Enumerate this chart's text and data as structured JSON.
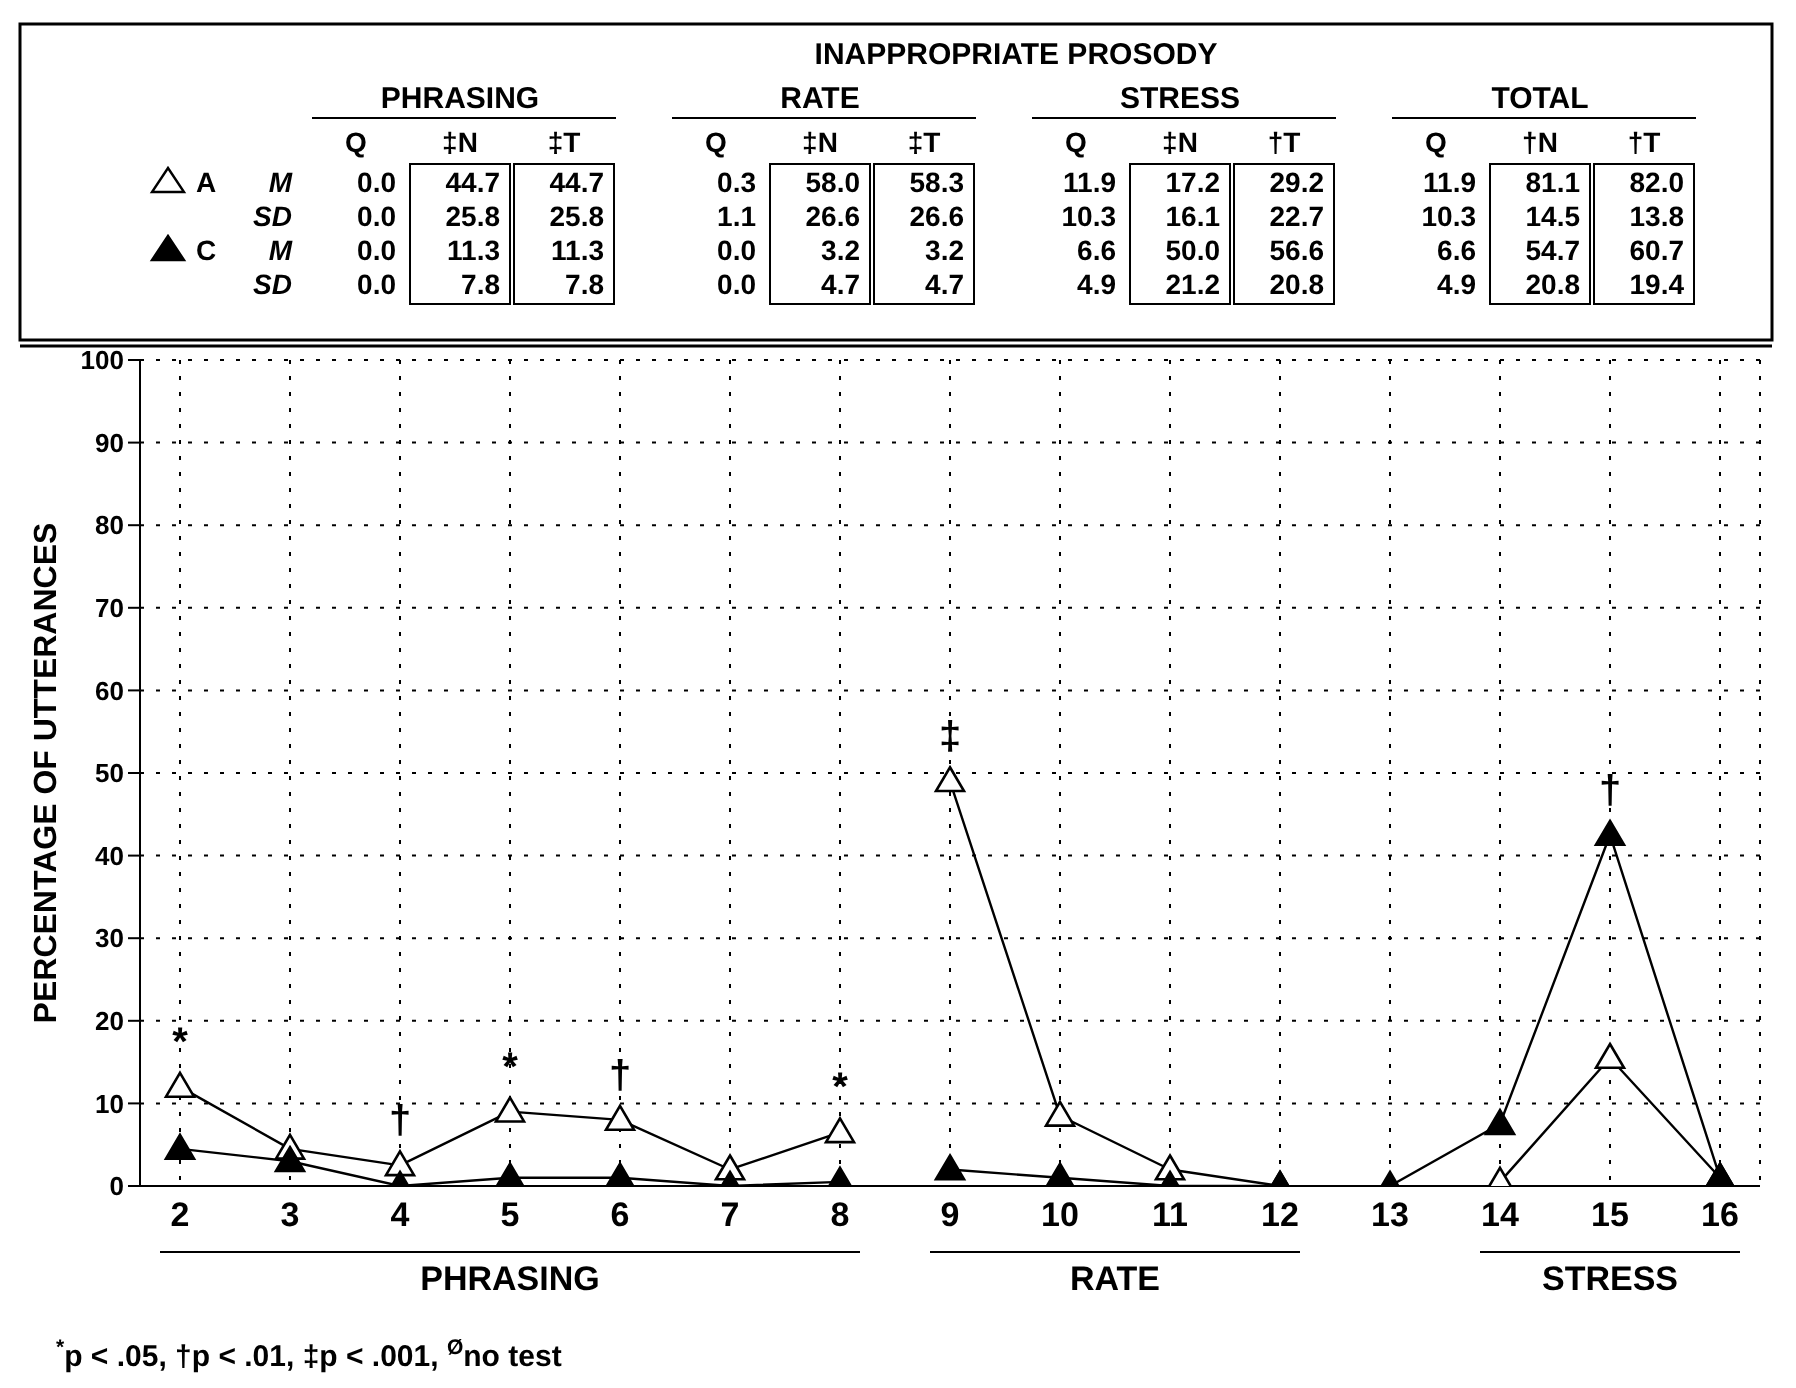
{
  "chart_data": [
    {
      "type": "heatmap",
      "title": "INAPPROPRIATE PROSODY",
      "annotations": [
        "PHRASING",
        "RATE",
        "STRESS",
        "TOTAL"
      ],
      "categories": [
        "Q",
        "‡N",
        "‡T",
        "Q",
        "‡N",
        "‡T",
        "Q",
        "‡N",
        "†T",
        "Q",
        "†N",
        "†T"
      ],
      "y_categories": [
        "M",
        "SD",
        "M",
        "SD"
      ],
      "cells": [
        [
          0.0,
          44.7,
          44.7,
          0.3,
          58.0,
          58.3,
          11.9,
          17.2,
          29.2,
          11.9,
          81.1,
          82.0
        ],
        [
          0.0,
          25.8,
          25.8,
          1.1,
          26.6,
          26.6,
          10.3,
          16.1,
          22.7,
          10.3,
          14.5,
          13.8
        ],
        [
          0.0,
          11.3,
          11.3,
          0.0,
          3.2,
          3.2,
          6.6,
          50.0,
          56.6,
          6.6,
          54.7,
          60.7
        ],
        [
          0.0,
          7.8,
          7.8,
          0.0,
          4.7,
          4.7,
          4.9,
          21.2,
          20.8,
          4.9,
          20.8,
          19.4
        ]
      ],
      "cell_labels": [
        [
          "0.0",
          "44.7",
          "44.7",
          "0.3",
          "58.0",
          "58.3",
          "11.9",
          "17.2",
          "29.2",
          "11.9",
          "81.1",
          "82.0"
        ],
        [
          "0.0",
          "25.8",
          "25.8",
          "1.1",
          "26.6",
          "26.6",
          "10.3",
          "16.1",
          "22.7",
          "10.3",
          "14.5",
          "13.8"
        ],
        [
          "0.0",
          "11.3",
          "11.3",
          "0.0",
          "3.2",
          "3.2",
          "6.6",
          "50.0",
          "56.6",
          "6.6",
          "54.7",
          "60.7"
        ],
        [
          "0.0",
          "7.8",
          "7.8",
          "0.0",
          "4.7",
          "4.7",
          "4.9",
          "21.2",
          "20.8",
          "4.9",
          "20.8",
          "19.4"
        ]
      ]
    },
    {
      "type": "line",
      "ylabel": "PERCENTAGE OF UTTERANCES",
      "categories": [
        "2",
        "3",
        "4",
        "5",
        "6",
        "7",
        "8",
        "9",
        "10",
        "11",
        "12",
        "13",
        "14",
        "15",
        "16"
      ],
      "ylim": [
        0,
        100
      ],
      "yticks": [
        0,
        10,
        20,
        30,
        40,
        50,
        60,
        70,
        80,
        90,
        100
      ],
      "grid": true,
      "marker": "triangle",
      "series": [
        {
          "name": "A",
          "color": "#ffffff",
          "values": [
            12,
            4.5,
            2.5,
            9,
            8,
            2,
            6.5,
            null,
            null,
            null,
            null,
            null,
            null,
            null,
            null
          ]
        },
        {
          "color": "#ffffff",
          "values": [
            null,
            null,
            null,
            null,
            null,
            null,
            null,
            49,
            8.5,
            2,
            0,
            null,
            null,
            null,
            null
          ]
        },
        {
          "color": "#ffffff",
          "values": [
            null,
            null,
            null,
            null,
            null,
            null,
            null,
            null,
            null,
            null,
            null,
            null,
            0.5,
            15.5,
            1
          ]
        },
        {
          "name": "C",
          "color": "#000000",
          "values": [
            4.5,
            3,
            0,
            1,
            1,
            0,
            0.5,
            null,
            null,
            null,
            null,
            null,
            null,
            null,
            null
          ]
        },
        {
          "color": "#000000",
          "values": [
            null,
            null,
            null,
            null,
            null,
            null,
            null,
            2,
            1,
            0,
            0,
            null,
            null,
            null,
            null
          ]
        },
        {
          "color": "#000000",
          "values": [
            null,
            null,
            null,
            null,
            null,
            null,
            null,
            null,
            null,
            null,
            null,
            0,
            7.5,
            42.5,
            1
          ]
        }
      ],
      "annotations": [
        "PHRASING",
        "RATE",
        "STRESS",
        "$^{*}$p < .05, †p < .01, ‡p < .001, $^{Ø}$no test",
        {
          "text": "*",
          "x": "2",
          "y": 12
        },
        {
          "text": "†",
          "x": "4",
          "y": 2.5
        },
        {
          "text": "*",
          "x": "5",
          "y": 9
        },
        {
          "text": "†",
          "x": "6",
          "y": 8
        },
        {
          "text": "*",
          "x": "8",
          "y": 6.5
        },
        {
          "text": "‡",
          "x": "9",
          "y": 49
        },
        {
          "text": "†",
          "x": "15",
          "y": 42.5
        }
      ]
    }
  ]
}
